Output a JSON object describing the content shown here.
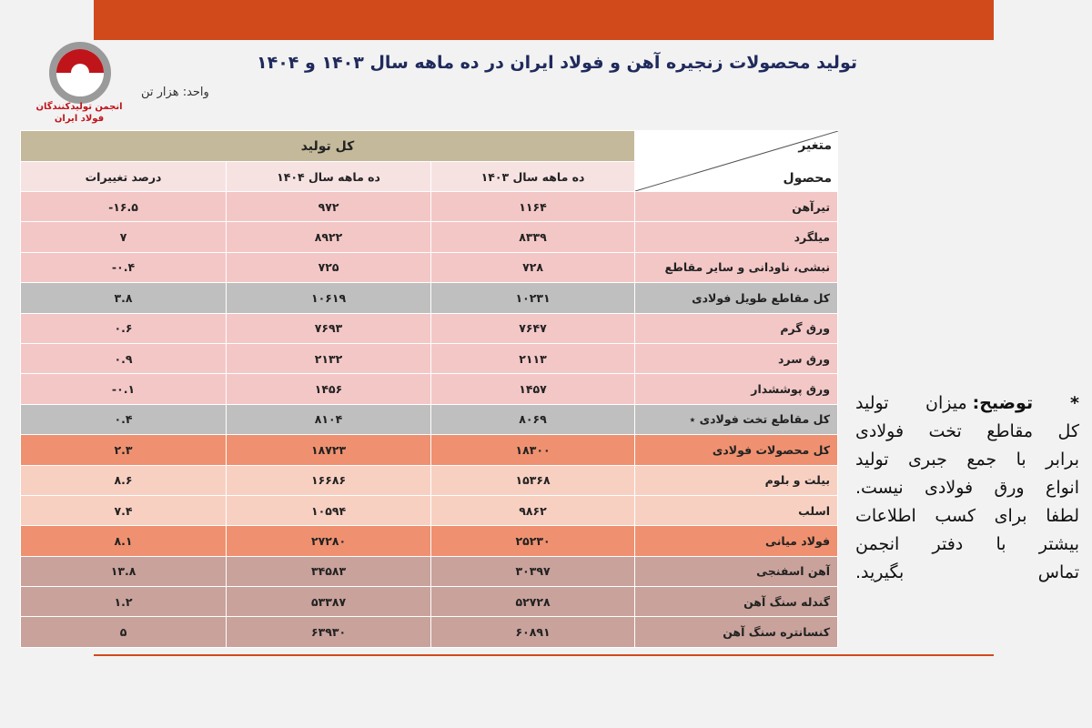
{
  "header": {
    "title": "تولید محصولات زنجیره آهن و فولاد ایران در ده ماهه سال ۱۴۰۳ و ۱۴۰۴",
    "unit": "واحد: هزار تن",
    "logo_lines": [
      "انجمن تولیدکنندگان",
      "فولاد ایران"
    ]
  },
  "table": {
    "group_header": "کل تولید",
    "corner_top": "متغیر",
    "corner_bottom": "محصول",
    "columns": [
      "ده ماهه سال ۱۴۰۳",
      "ده ماهه سال ۱۴۰۴",
      "درصد تغییرات"
    ],
    "rows": [
      {
        "color": "#f4c7c7",
        "cells": [
          "تیرآهن",
          "۱۱۶۴",
          "۹۷۲",
          "-۱۶.۵"
        ]
      },
      {
        "color": "#f4c7c7",
        "cells": [
          "میلگرد",
          "۸۳۳۹",
          "۸۹۲۲",
          "۷"
        ]
      },
      {
        "color": "#f4c7c7",
        "cells": [
          "نبشی، ناودانی و سایر مقاطع",
          "۷۲۸",
          "۷۲۵",
          "-۰.۴"
        ]
      },
      {
        "color": "#bfbfbf",
        "cells": [
          "کل مقاطع طویل فولادی",
          "۱۰۲۳۱",
          "۱۰۶۱۹",
          "۳.۸"
        ]
      },
      {
        "color": "#f4c7c7",
        "cells": [
          "ورق گرم",
          "۷۶۴۷",
          "۷۶۹۳",
          "۰.۶"
        ]
      },
      {
        "color": "#f4c7c7",
        "cells": [
          "ورق سرد",
          "۲۱۱۳",
          "۲۱۳۲",
          "۰.۹"
        ]
      },
      {
        "color": "#f4c7c7",
        "cells": [
          "ورق پوششدار",
          "۱۴۵۷",
          "۱۴۵۶",
          "-۰.۱"
        ]
      },
      {
        "color": "#bfbfbf",
        "cells": [
          "کل مقاطع تخت فولادی ٭",
          "۸۰۶۹",
          "۸۱۰۴",
          "۰.۴"
        ]
      },
      {
        "color": "#ef9170",
        "cells": [
          "کل محصولات فولادی",
          "۱۸۳۰۰",
          "۱۸۷۲۳",
          "۲.۳"
        ]
      },
      {
        "color": "#f8d0c2",
        "cells": [
          "بیلت و بلوم",
          "۱۵۳۶۸",
          "۱۶۶۸۶",
          "۸.۶"
        ]
      },
      {
        "color": "#f8d0c2",
        "cells": [
          "اسلب",
          "۹۸۶۲",
          "۱۰۵۹۴",
          "۷.۴"
        ]
      },
      {
        "color": "#ef9170",
        "cells": [
          "فولاد میانی",
          "۲۵۲۳۰",
          "۲۷۲۸۰",
          "۸.۱"
        ]
      },
      {
        "color": "#c9a29b",
        "cells": [
          "آهن اسفنجی",
          "۳۰۳۹۷",
          "۳۴۵۸۳",
          "۱۳.۸"
        ]
      },
      {
        "color": "#c9a29b",
        "cells": [
          "گندله سنگ آهن",
          "۵۲۷۲۸",
          "۵۳۳۸۷",
          "۱.۲"
        ]
      },
      {
        "color": "#c9a29b",
        "cells": [
          "کنسانتره سنگ آهن",
          "۶۰۸۹۱",
          "۶۳۹۳۰",
          "۵"
        ]
      }
    ]
  },
  "note": {
    "label": "* توضیح:",
    "lines": [
      "میزان تولید",
      "کل مقاطع تخت فولادی",
      "برابر با جمع جبری تولید",
      "انواع ورق فولادی نیست.",
      "لطفا برای کسب اطلاعات",
      "بیشتر با دفتر انجمن",
      "تماس بگیرید."
    ]
  }
}
